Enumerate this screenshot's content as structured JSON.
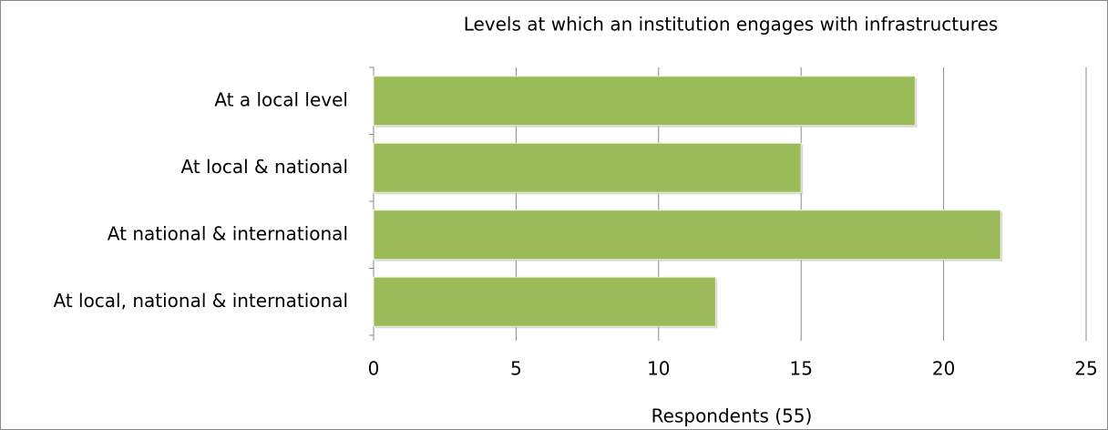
{
  "chart_data": {
    "type": "bar",
    "orientation": "horizontal",
    "title": "Levels at which an institution engages with infrastructures",
    "x_label": "Respondents (55)",
    "categories": [
      "At a local level",
      "At local & national",
      "At national & international",
      "At local, national & international"
    ],
    "values": [
      19,
      15,
      22,
      12
    ],
    "color": "#9bbb59",
    "xlim": [
      0,
      25
    ],
    "xticks": [
      0,
      5,
      10,
      15,
      20,
      25
    ],
    "grid": true
  }
}
